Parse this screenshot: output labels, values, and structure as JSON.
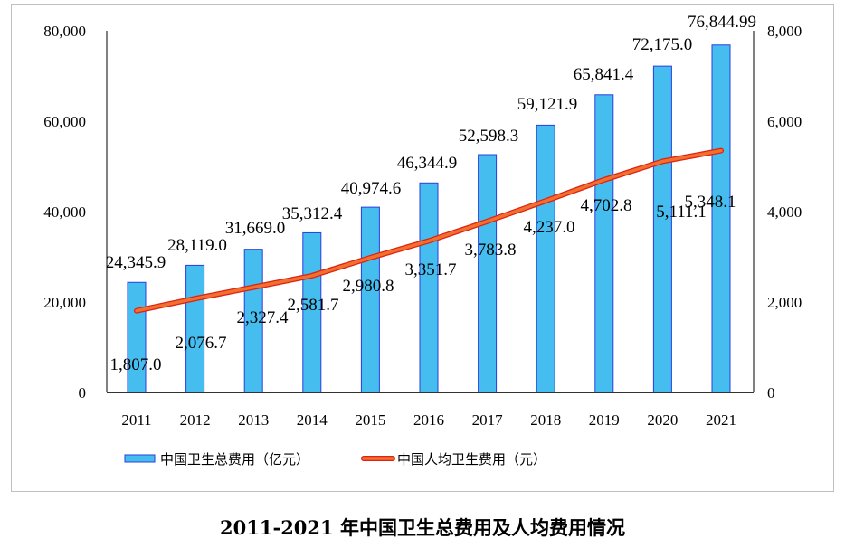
{
  "chart_data": {
    "type": "bar+line",
    "title": "2011-2021 年中国卫生总费用及人均费用情况",
    "categories": [
      "2011",
      "2012",
      "2013",
      "2014",
      "2015",
      "2016",
      "2017",
      "2018",
      "2019",
      "2020",
      "2021"
    ],
    "series": [
      {
        "name": "中国卫生总费用（亿元）",
        "type": "bar",
        "axis": "left",
        "color": "#45BDEE",
        "values": [
          24345.9,
          28119.0,
          31669.0,
          35312.4,
          40974.6,
          46344.9,
          52598.3,
          59121.9,
          65841.4,
          72175.0,
          76844.99
        ],
        "labels": [
          "24,345.9",
          "28,119.0",
          "31,669.0",
          "35,312.4",
          "40,974.6",
          "46,344.9",
          "52,598.3",
          "59,121.9",
          "65,841.4",
          "72,175.0",
          "76,844.99"
        ]
      },
      {
        "name": "中国人均卫生费用（元）",
        "type": "line",
        "axis": "right",
        "color": "#F07030",
        "values": [
          1807.0,
          2076.7,
          2327.4,
          2581.7,
          2980.8,
          3351.7,
          3783.8,
          4237.0,
          4702.8,
          5111.1,
          5348.1
        ],
        "labels": [
          "1,807.0",
          "2,076.7",
          "2,327.4",
          "2,581.7",
          "2,980.8",
          "3,351.7",
          "3,783.8",
          "4,237.0",
          "4,702.8",
          "5,111.1",
          "5,348.1"
        ]
      }
    ],
    "left_axis": {
      "ylim": [
        0,
        80000
      ],
      "ticks": [
        "0",
        "20,000",
        "40,000",
        "60,000",
        "80,000"
      ]
    },
    "right_axis": {
      "ylim": [
        0,
        8000
      ],
      "ticks": [
        "0",
        "2,000",
        "4,000",
        "6,000",
        "8,000"
      ]
    },
    "grid": false,
    "legend": "bottom"
  }
}
